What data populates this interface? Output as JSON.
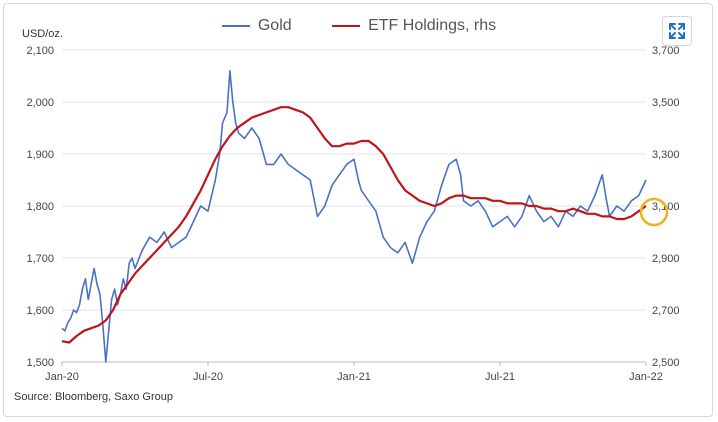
{
  "legend": [
    {
      "name": "Gold",
      "color": "#4a72c4"
    },
    {
      "name": "ETF Holdings, rhs",
      "color": "#c0141b"
    }
  ],
  "left_unit": "USD/oz.",
  "source": "Source: Bloomberg, Saxo Group",
  "expand_icon": "expand-icon",
  "highlight_color": "#f2b21a",
  "chart_data": {
    "type": "line",
    "x_ticks": [
      "Jan-20",
      "Jul-20",
      "Jan-21",
      "Jul-21",
      "Jan-22"
    ],
    "y_left": {
      "min": 1500,
      "max": 2100,
      "ticks": [
        "1,500",
        "1,600",
        "1,700",
        "1,800",
        "1,900",
        "2,000",
        "2,100"
      ]
    },
    "y_right": {
      "min": 2500,
      "max": 3700,
      "ticks": [
        "2,500",
        "2,700",
        "2,900",
        "3,100",
        "3,300",
        "3,500",
        "3,700"
      ]
    },
    "grid": true,
    "legend_position": "top",
    "series": [
      {
        "name": "Gold",
        "axis": "left",
        "color": "#4a72c4",
        "points": [
          [
            0.0,
            1565
          ],
          [
            0.02,
            1560
          ],
          [
            0.04,
            1575
          ],
          [
            0.06,
            1585
          ],
          [
            0.08,
            1600
          ],
          [
            0.1,
            1595
          ],
          [
            0.12,
            1610
          ],
          [
            0.14,
            1640
          ],
          [
            0.16,
            1660
          ],
          [
            0.18,
            1620
          ],
          [
            0.2,
            1650
          ],
          [
            0.22,
            1680
          ],
          [
            0.24,
            1650
          ],
          [
            0.26,
            1630
          ],
          [
            0.28,
            1570
          ],
          [
            0.3,
            1500
          ],
          [
            0.32,
            1560
          ],
          [
            0.34,
            1620
          ],
          [
            0.36,
            1640
          ],
          [
            0.38,
            1610
          ],
          [
            0.4,
            1630
          ],
          [
            0.42,
            1660
          ],
          [
            0.44,
            1640
          ],
          [
            0.46,
            1690
          ],
          [
            0.48,
            1700
          ],
          [
            0.5,
            1680
          ],
          [
            0.55,
            1715
          ],
          [
            0.6,
            1740
          ],
          [
            0.65,
            1730
          ],
          [
            0.7,
            1750
          ],
          [
            0.75,
            1720
          ],
          [
            0.8,
            1730
          ],
          [
            0.85,
            1740
          ],
          [
            0.9,
            1770
          ],
          [
            0.95,
            1800
          ],
          [
            1.0,
            1790
          ],
          [
            1.05,
            1850
          ],
          [
            1.08,
            1900
          ],
          [
            1.1,
            1960
          ],
          [
            1.13,
            1980
          ],
          [
            1.15,
            2060
          ],
          [
            1.17,
            2000
          ],
          [
            1.19,
            1960
          ],
          [
            1.21,
            1940
          ],
          [
            1.25,
            1930
          ],
          [
            1.3,
            1950
          ],
          [
            1.35,
            1930
          ],
          [
            1.4,
            1880
          ],
          [
            1.45,
            1880
          ],
          [
            1.5,
            1900
          ],
          [
            1.55,
            1880
          ],
          [
            1.6,
            1870
          ],
          [
            1.65,
            1860
          ],
          [
            1.7,
            1850
          ],
          [
            1.75,
            1780
          ],
          [
            1.8,
            1800
          ],
          [
            1.85,
            1840
          ],
          [
            1.9,
            1860
          ],
          [
            1.95,
            1880
          ],
          [
            2.0,
            1890
          ],
          [
            2.03,
            1850
          ],
          [
            2.05,
            1830
          ],
          [
            2.1,
            1810
          ],
          [
            2.15,
            1790
          ],
          [
            2.2,
            1740
          ],
          [
            2.25,
            1720
          ],
          [
            2.3,
            1710
          ],
          [
            2.35,
            1730
          ],
          [
            2.4,
            1690
          ],
          [
            2.45,
            1740
          ],
          [
            2.5,
            1770
          ],
          [
            2.55,
            1790
          ],
          [
            2.6,
            1840
          ],
          [
            2.65,
            1880
          ],
          [
            2.7,
            1890
          ],
          [
            2.73,
            1860
          ],
          [
            2.75,
            1810
          ],
          [
            2.8,
            1800
          ],
          [
            2.85,
            1810
          ],
          [
            2.9,
            1790
          ],
          [
            2.95,
            1760
          ],
          [
            3.0,
            1770
          ],
          [
            3.05,
            1780
          ],
          [
            3.1,
            1760
          ],
          [
            3.15,
            1780
          ],
          [
            3.2,
            1820
          ],
          [
            3.25,
            1790
          ],
          [
            3.3,
            1770
          ],
          [
            3.35,
            1780
          ],
          [
            3.4,
            1760
          ],
          [
            3.45,
            1790
          ],
          [
            3.5,
            1780
          ],
          [
            3.55,
            1800
          ],
          [
            3.6,
            1790
          ],
          [
            3.65,
            1820
          ],
          [
            3.7,
            1860
          ],
          [
            3.73,
            1810
          ],
          [
            3.75,
            1780
          ],
          [
            3.8,
            1800
          ],
          [
            3.85,
            1790
          ],
          [
            3.9,
            1810
          ],
          [
            3.95,
            1820
          ],
          [
            4.0,
            1850
          ]
        ]
      },
      {
        "name": "ETF Holdings, rhs",
        "axis": "right",
        "color": "#c0141b",
        "points": [
          [
            0.0,
            2580
          ],
          [
            0.05,
            2575
          ],
          [
            0.1,
            2600
          ],
          [
            0.15,
            2620
          ],
          [
            0.2,
            2630
          ],
          [
            0.25,
            2640
          ],
          [
            0.3,
            2660
          ],
          [
            0.35,
            2700
          ],
          [
            0.4,
            2760
          ],
          [
            0.45,
            2800
          ],
          [
            0.5,
            2840
          ],
          [
            0.55,
            2870
          ],
          [
            0.6,
            2900
          ],
          [
            0.65,
            2930
          ],
          [
            0.7,
            2960
          ],
          [
            0.75,
            2990
          ],
          [
            0.8,
            3020
          ],
          [
            0.85,
            3060
          ],
          [
            0.9,
            3110
          ],
          [
            0.95,
            3160
          ],
          [
            1.0,
            3220
          ],
          [
            1.05,
            3280
          ],
          [
            1.1,
            3330
          ],
          [
            1.15,
            3370
          ],
          [
            1.2,
            3400
          ],
          [
            1.25,
            3420
          ],
          [
            1.3,
            3440
          ],
          [
            1.35,
            3450
          ],
          [
            1.4,
            3460
          ],
          [
            1.45,
            3470
          ],
          [
            1.5,
            3480
          ],
          [
            1.55,
            3480
          ],
          [
            1.6,
            3470
          ],
          [
            1.65,
            3460
          ],
          [
            1.7,
            3440
          ],
          [
            1.75,
            3400
          ],
          [
            1.8,
            3360
          ],
          [
            1.85,
            3330
          ],
          [
            1.9,
            3330
          ],
          [
            1.95,
            3340
          ],
          [
            2.0,
            3340
          ],
          [
            2.05,
            3350
          ],
          [
            2.1,
            3350
          ],
          [
            2.15,
            3330
          ],
          [
            2.2,
            3300
          ],
          [
            2.25,
            3250
          ],
          [
            2.3,
            3200
          ],
          [
            2.35,
            3160
          ],
          [
            2.4,
            3140
          ],
          [
            2.45,
            3120
          ],
          [
            2.5,
            3110
          ],
          [
            2.55,
            3100
          ],
          [
            2.6,
            3110
          ],
          [
            2.65,
            3130
          ],
          [
            2.7,
            3140
          ],
          [
            2.75,
            3140
          ],
          [
            2.8,
            3130
          ],
          [
            2.85,
            3130
          ],
          [
            2.9,
            3130
          ],
          [
            2.95,
            3120
          ],
          [
            3.0,
            3120
          ],
          [
            3.05,
            3110
          ],
          [
            3.1,
            3110
          ],
          [
            3.15,
            3110
          ],
          [
            3.2,
            3100
          ],
          [
            3.25,
            3100
          ],
          [
            3.3,
            3090
          ],
          [
            3.35,
            3090
          ],
          [
            3.4,
            3080
          ],
          [
            3.45,
            3080
          ],
          [
            3.5,
            3090
          ],
          [
            3.55,
            3080
          ],
          [
            3.6,
            3070
          ],
          [
            3.65,
            3070
          ],
          [
            3.7,
            3060
          ],
          [
            3.75,
            3060
          ],
          [
            3.8,
            3050
          ],
          [
            3.85,
            3050
          ],
          [
            3.9,
            3060
          ],
          [
            3.95,
            3080
          ],
          [
            4.0,
            3100
          ]
        ]
      }
    ]
  }
}
